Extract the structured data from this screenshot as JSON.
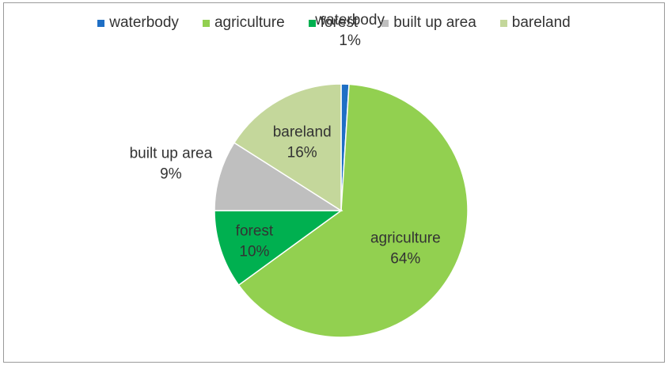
{
  "chart_data": {
    "type": "pie",
    "title": "",
    "legend_position": "top",
    "categories": [
      "waterbody",
      "agriculture",
      "forest",
      "built up area",
      "bareland"
    ],
    "values": [
      1,
      64,
      10,
      9,
      16
    ],
    "value_labels": [
      "1%",
      "64%",
      "10%",
      "9%",
      "16%"
    ],
    "colors": [
      "#1f6fc5",
      "#92d050",
      "#00b050",
      "#bfbfbf",
      "#c4d79b"
    ]
  }
}
